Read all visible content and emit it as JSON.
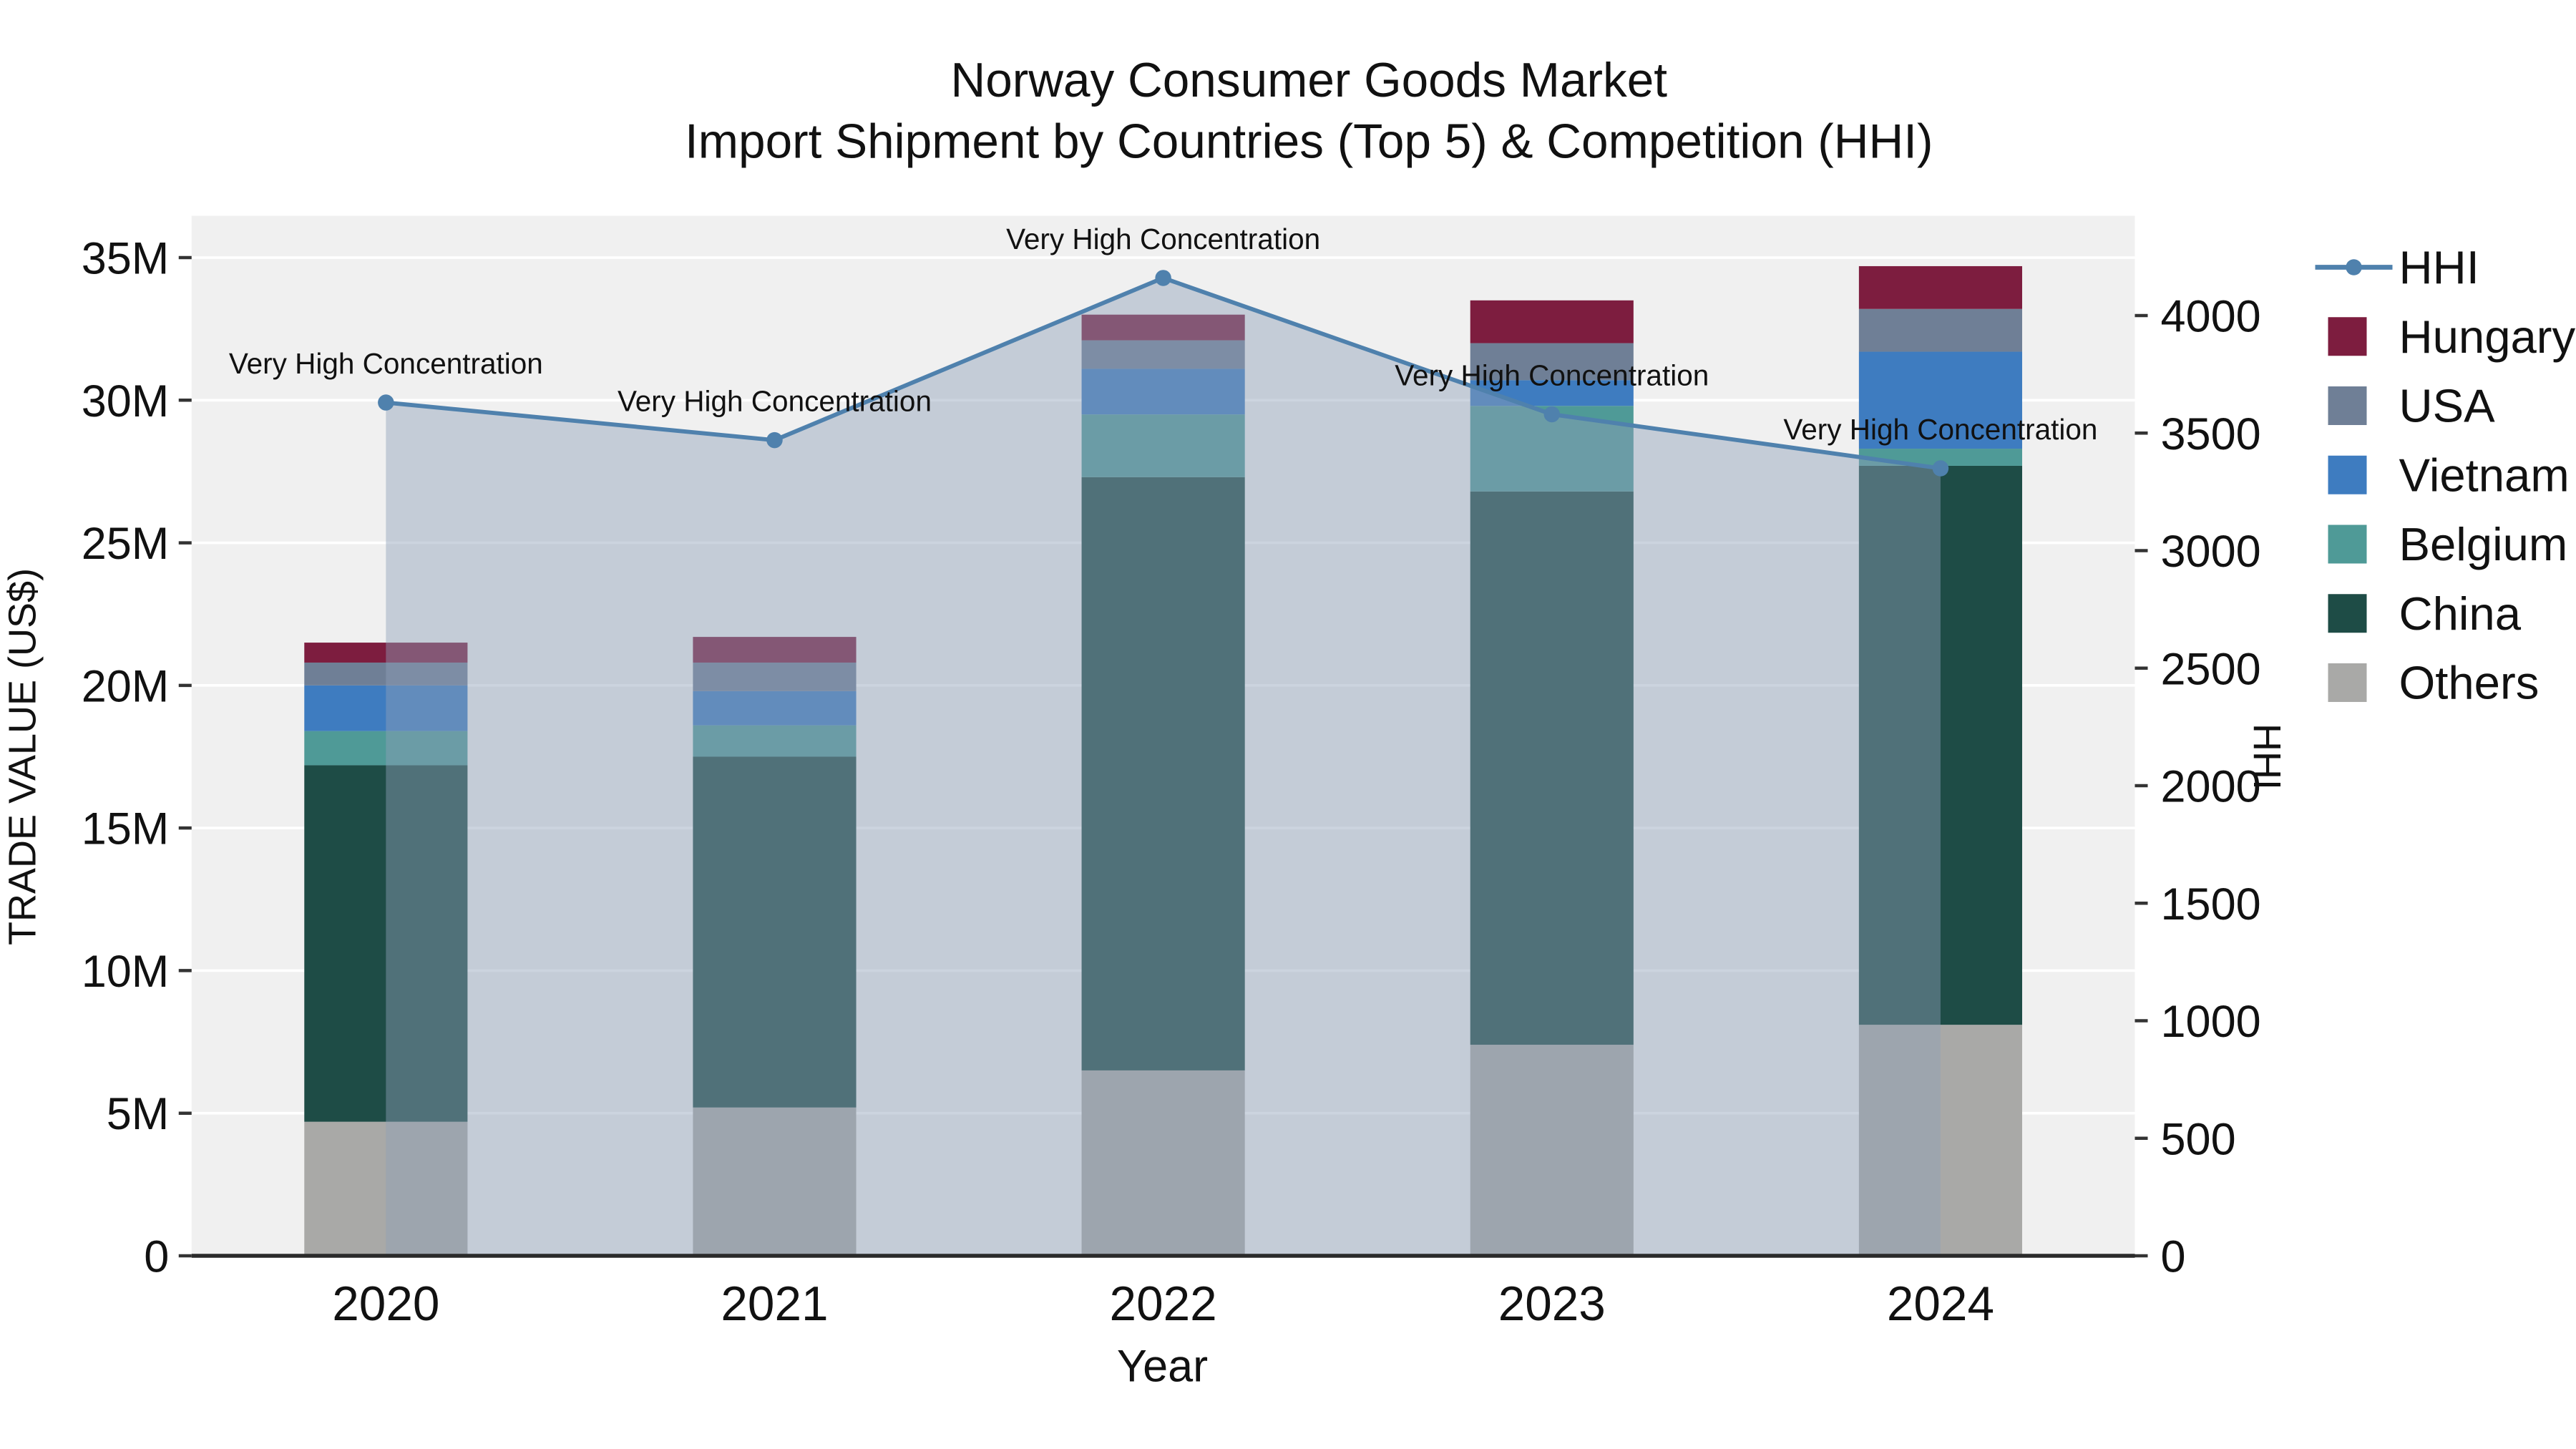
{
  "title": {
    "line1": "Norway Consumer Goods Market",
    "line2": "Import Shipment by Countries (Top 5) & Competition (HHI)"
  },
  "chart_data": {
    "type": "bar",
    "subtype": "stacked-bar-with-line",
    "categories": [
      "2020",
      "2021",
      "2022",
      "2023",
      "2024"
    ],
    "bar_value_unit": "M US$",
    "bar_series": [
      {
        "name": "Others",
        "color": "#a9a9a7",
        "values": [
          4.7,
          5.2,
          6.5,
          7.4,
          8.1
        ]
      },
      {
        "name": "China",
        "color": "#1e4c46",
        "values": [
          12.5,
          12.3,
          20.8,
          19.4,
          19.6
        ]
      },
      {
        "name": "Belgium",
        "color": "#4f9a97",
        "values": [
          1.2,
          1.1,
          2.2,
          3.0,
          0.6
        ]
      },
      {
        "name": "Vietnam",
        "color": "#3e7cc0",
        "values": [
          1.6,
          1.2,
          1.6,
          0.9,
          3.4
        ]
      },
      {
        "name": "USA",
        "color": "#6f7f96",
        "values": [
          0.8,
          1.0,
          1.0,
          1.3,
          1.5
        ]
      },
      {
        "name": "Hungary",
        "color": "#7d1d3f",
        "values": [
          0.7,
          0.9,
          0.9,
          1.5,
          1.5
        ]
      }
    ],
    "line_series": {
      "name": "HHI",
      "color": "#4f81ad",
      "area_color": "rgba(143,160,184,0.45)",
      "values": [
        3630,
        3470,
        4160,
        3580,
        3350
      ]
    },
    "annotations": [
      "Very High Concentration",
      "Very High Concentration",
      "Very High Concentration",
      "Very High Concentration",
      "Very High Concentration"
    ],
    "left_axis": {
      "title": "TRADE VALUE (US$)",
      "ticks": [
        "0",
        "5M",
        "10M",
        "15M",
        "20M",
        "25M",
        "30M",
        "35M"
      ],
      "tick_values": [
        0,
        5,
        10,
        15,
        20,
        25,
        30,
        35
      ],
      "max": 35
    },
    "right_axis": {
      "title": "HHI",
      "ticks": [
        "0",
        "500",
        "1000",
        "1500",
        "2000",
        "2500",
        "3000",
        "3500",
        "4000"
      ],
      "tick_values": [
        0,
        500,
        1000,
        1500,
        2000,
        2500,
        3000,
        3500,
        4000
      ],
      "max": 4000
    },
    "x_axis": {
      "title": "Year"
    },
    "legend_order": [
      "HHI",
      "Hungary",
      "USA",
      "Vietnam",
      "Belgium",
      "China",
      "Others"
    ]
  }
}
